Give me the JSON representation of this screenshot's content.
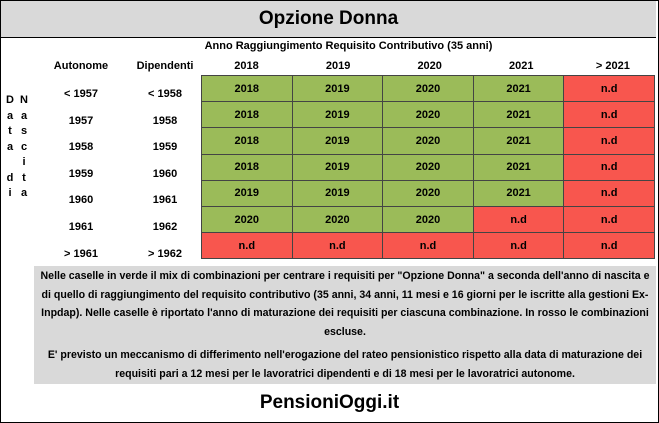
{
  "title": "Opzione Donna",
  "subtitle": "Anno Raggiungimento Requisito Contributivo (35 anni)",
  "col_headers": {
    "autonome": "Autonome",
    "dipendenti": "Dipendenti"
  },
  "years": [
    "2018",
    "2019",
    "2020",
    "2021",
    "> 2021"
  ],
  "side_label_left": [
    "D",
    "a",
    "t",
    "a",
    "",
    "d",
    "i"
  ],
  "side_label_right": [
    "N",
    "a",
    "s",
    "c",
    "i",
    "t",
    "a"
  ],
  "rows": [
    {
      "autonome": "< 1957",
      "dipendenti": "< 1958",
      "cells": [
        {
          "text": "2018",
          "status": "green"
        },
        {
          "text": "2019",
          "status": "green"
        },
        {
          "text": "2020",
          "status": "green"
        },
        {
          "text": "2021",
          "status": "green"
        },
        {
          "text": "n.d",
          "status": "red"
        }
      ]
    },
    {
      "autonome": "1957",
      "dipendenti": "1958",
      "cells": [
        {
          "text": "2018",
          "status": "green"
        },
        {
          "text": "2019",
          "status": "green"
        },
        {
          "text": "2020",
          "status": "green"
        },
        {
          "text": "2021",
          "status": "green"
        },
        {
          "text": "n.d",
          "status": "red"
        }
      ]
    },
    {
      "autonome": "1958",
      "dipendenti": "1959",
      "cells": [
        {
          "text": "2018",
          "status": "green"
        },
        {
          "text": "2019",
          "status": "green"
        },
        {
          "text": "2020",
          "status": "green"
        },
        {
          "text": "2021",
          "status": "green"
        },
        {
          "text": "n.d",
          "status": "red"
        }
      ]
    },
    {
      "autonome": "1959",
      "dipendenti": "1960",
      "cells": [
        {
          "text": "2018",
          "status": "green"
        },
        {
          "text": "2019",
          "status": "green"
        },
        {
          "text": "2020",
          "status": "green"
        },
        {
          "text": "2021",
          "status": "green"
        },
        {
          "text": "n.d",
          "status": "red"
        }
      ]
    },
    {
      "autonome": "1960",
      "dipendenti": "1961",
      "cells": [
        {
          "text": "2019",
          "status": "green"
        },
        {
          "text": "2019",
          "status": "green"
        },
        {
          "text": "2020",
          "status": "green"
        },
        {
          "text": "2021",
          "status": "green"
        },
        {
          "text": "n.d",
          "status": "red"
        }
      ]
    },
    {
      "autonome": "1961",
      "dipendenti": "1962",
      "cells": [
        {
          "text": "2020",
          "status": "green"
        },
        {
          "text": "2020",
          "status": "green"
        },
        {
          "text": "2020",
          "status": "green"
        },
        {
          "text": "n.d",
          "status": "red"
        },
        {
          "text": "n.d",
          "status": "red"
        }
      ]
    },
    {
      "autonome": "> 1961",
      "dipendenti": "> 1962",
      "cells": [
        {
          "text": "n.d",
          "status": "red"
        },
        {
          "text": "n.d",
          "status": "red"
        },
        {
          "text": "n.d",
          "status": "red"
        },
        {
          "text": "n.d",
          "status": "red"
        },
        {
          "text": "n.d",
          "status": "red"
        }
      ]
    }
  ],
  "notes": {
    "p1": "Nelle caselle in verde il mix di combinazioni per centrare i requisiti per \"Opzione Donna\" a seconda dell'anno di nascita e di quello di raggiungimento del requisito contributivo (35 anni, 34 anni, 11 mesi e 16 giorni per le iscritte alla gestioni Ex-Inpdap). Nelle caselle è riportato l'anno di maturazione dei requisiti per ciascuna combinazione. In rosso le combinazioni escluse.",
    "p2": "E' previsto un meccanismo di differimento nell'erogazione del rateo pensionistico rispetto alla data di maturazione dei requisiti pari a 12 mesi per le lavoratrici dipendenti  e di 18 mesi per le lavoratrici autonome."
  },
  "footer": "PensioniOggi.it",
  "colors": {
    "green": "#9bbb59",
    "red": "#f8564e",
    "grey": "#d9d9d9"
  }
}
